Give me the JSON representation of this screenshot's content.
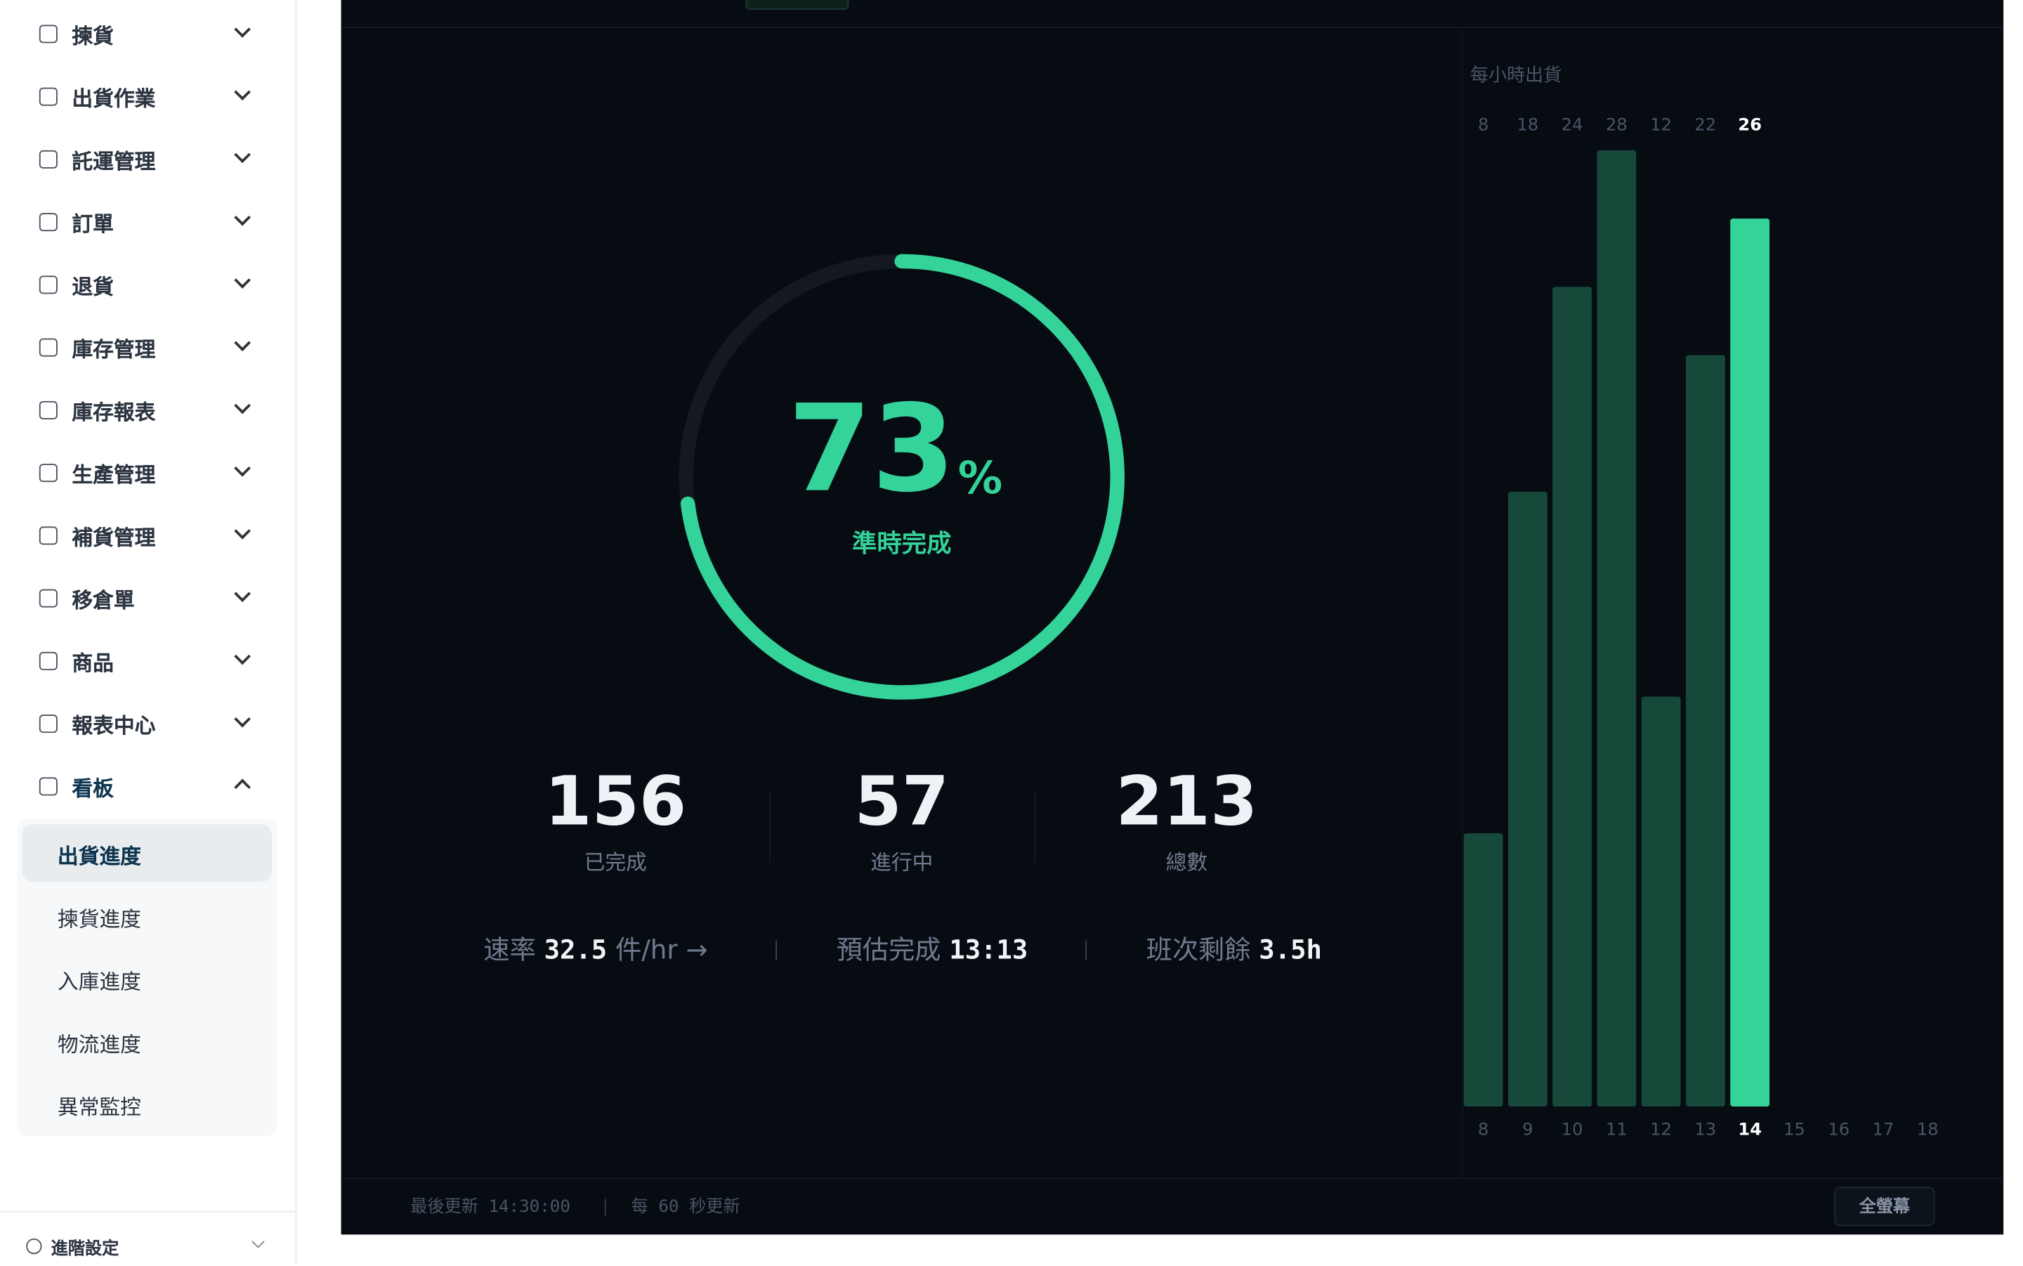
{
  "sidebar": {
    "items": [
      "揀貨",
      "出貨作業",
      "託運管理",
      "訂單",
      "退貨",
      "庫存管理",
      "庫存報表",
      "生產管理",
      "補貨管理",
      "移倉單",
      "商品",
      "報表中心",
      "看板"
    ],
    "subitems": [
      "出貨進度",
      "揀貨進度",
      "入庫進度",
      "物流進度",
      "異常監控"
    ],
    "settings": "進階設定"
  },
  "dashboard": {
    "gauge": {
      "value": 73,
      "unit": "%",
      "label": "準時完成",
      "color": "#34d399"
    },
    "stats": [
      {
        "value": 156,
        "label": "已完成"
      },
      {
        "value": 57,
        "label": "進行中"
      },
      {
        "value": 213,
        "label": "總數"
      }
    ],
    "metrics": [
      {
        "label": "速率",
        "value": "32.5",
        "unit": "件/hr →"
      },
      {
        "label": "預估完成",
        "value": "13:13"
      },
      {
        "label": "班次剩餘",
        "value": "3.5h"
      }
    ],
    "hourly": {
      "type": "bar",
      "title": "每小時出貨",
      "categories": [
        "8",
        "9",
        "10",
        "11",
        "12",
        "13",
        "14",
        "15",
        "16",
        "17",
        "18"
      ],
      "values": [
        8,
        18,
        24,
        28,
        12,
        22,
        26,
        null,
        null,
        null,
        null
      ],
      "colors": [
        "#17493a",
        "#17493a",
        "#17493a",
        "#17493a",
        "#17493a",
        "#17493a",
        "#34d399",
        null,
        null,
        null,
        null
      ]
    },
    "footer": {
      "last_updated": "最後更新 14:30:00",
      "refresh": "每 60 秒更新",
      "button": "全螢幕"
    }
  }
}
